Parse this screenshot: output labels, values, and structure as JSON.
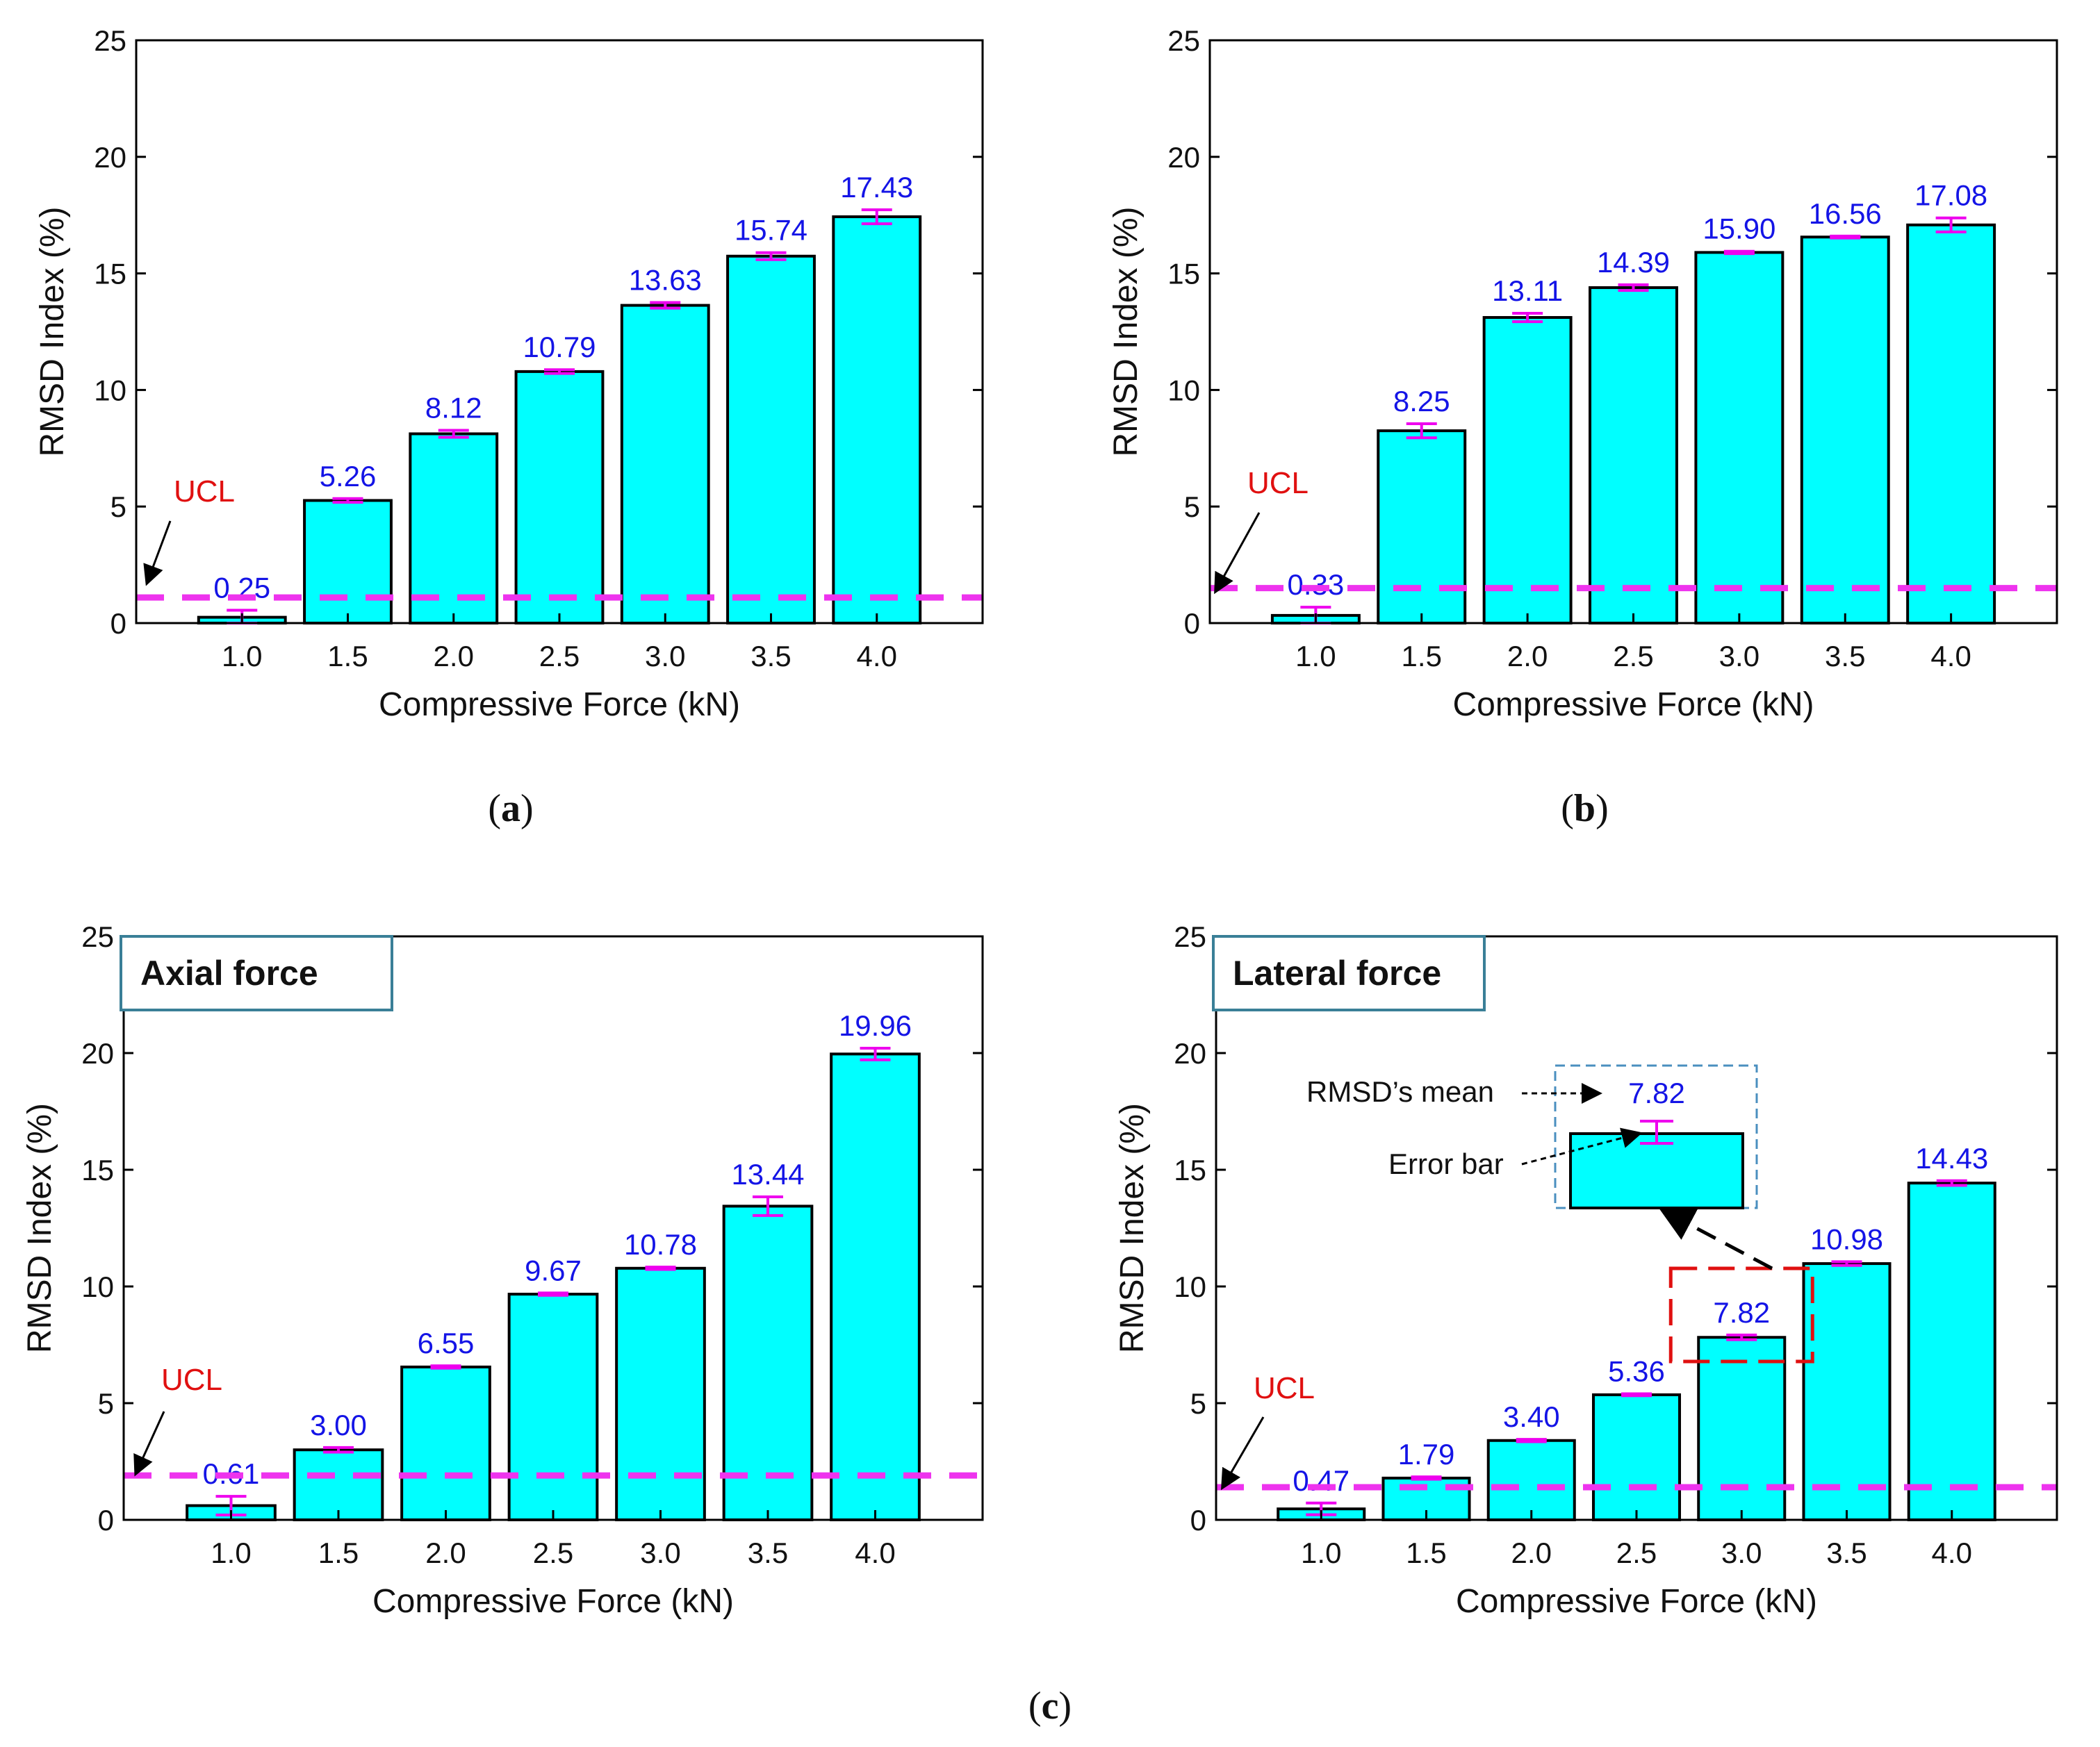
{
  "colors": {
    "bar_fill": "#00ffff",
    "bar_edge": "#000000",
    "error_bar": "#ee00ee",
    "ucl_line": "#ee33ee",
    "value_label": "#1414e6",
    "ucl_label": "#e01010",
    "label_box_border": "#3a7f97",
    "zoom_box": "#e01010",
    "inset_border": "#4a8fbf"
  },
  "chart_data": [
    {
      "id": "a",
      "type": "bar",
      "caption": "a",
      "categories": [
        "1.0",
        "1.5",
        "2.0",
        "2.5",
        "3.0",
        "3.5",
        "4.0"
      ],
      "values": [
        0.25,
        5.26,
        8.12,
        10.79,
        13.63,
        15.74,
        17.43
      ],
      "value_labels": [
        "0.25",
        "5.26",
        "8.12",
        "10.79",
        "13.63",
        "15.74",
        "17.43"
      ],
      "errors": [
        0.3,
        0.08,
        0.15,
        0.08,
        0.12,
        0.15,
        0.3
      ],
      "ucl": 1.1,
      "ucl_label": "UCL",
      "xlabel": "Compressive Force (kN)",
      "ylabel": "RMSD Index (%)",
      "ylim": [
        0,
        25
      ],
      "yticks": [
        "0",
        "5",
        "10",
        "15",
        "20",
        "25"
      ]
    },
    {
      "id": "b",
      "type": "bar",
      "caption": "b",
      "categories": [
        "1.0",
        "1.5",
        "2.0",
        "2.5",
        "3.0",
        "3.5",
        "4.0"
      ],
      "values": [
        0.33,
        8.25,
        13.11,
        14.39,
        15.9,
        16.56,
        17.08
      ],
      "value_labels": [
        "0.33",
        "8.25",
        "13.11",
        "14.39",
        "15.90",
        "16.56",
        "17.08"
      ],
      "errors": [
        0.35,
        0.3,
        0.18,
        0.12,
        0.05,
        0.04,
        0.3
      ],
      "ucl": 1.5,
      "ucl_label": "UCL",
      "xlabel": "Compressive Force (kN)",
      "ylabel": "RMSD Index (%)",
      "ylim": [
        0,
        25
      ],
      "yticks": [
        "0",
        "5",
        "10",
        "15",
        "20",
        "25"
      ]
    },
    {
      "id": "c-axial",
      "type": "bar",
      "box_label": "Axial force",
      "categories": [
        "1.0",
        "1.5",
        "2.0",
        "2.5",
        "3.0",
        "3.5",
        "4.0"
      ],
      "values": [
        0.61,
        3.0,
        6.55,
        9.67,
        10.78,
        13.44,
        19.96
      ],
      "value_labels": [
        "0.61",
        "3.00",
        "6.55",
        "9.67",
        "10.78",
        "13.44",
        "19.96"
      ],
      "errors": [
        0.4,
        0.1,
        0.05,
        0.05,
        0.05,
        0.4,
        0.25
      ],
      "ucl": 1.9,
      "ucl_label": "UCL",
      "xlabel": "Compressive Force (kN)",
      "ylabel": "RMSD Index (%)",
      "ylim": [
        0,
        25
      ],
      "yticks": [
        "0",
        "5",
        "10",
        "15",
        "20",
        "25"
      ]
    },
    {
      "id": "c-lateral",
      "type": "bar",
      "box_label": "Lateral force",
      "categories": [
        "1.0",
        "1.5",
        "2.0",
        "2.5",
        "3.0",
        "3.5",
        "4.0"
      ],
      "values": [
        0.47,
        1.79,
        3.4,
        5.36,
        7.82,
        10.98,
        14.43
      ],
      "value_labels": [
        "0.47",
        "1.79",
        "3.40",
        "5.36",
        "7.82",
        "10.98",
        "14.43"
      ],
      "errors": [
        0.25,
        0.05,
        0.05,
        0.04,
        0.1,
        0.08,
        0.1
      ],
      "ucl": 1.4,
      "ucl_label": "UCL",
      "xlabel": "Compressive Force (kN)",
      "ylabel": "RMSD Index (%)",
      "ylim": [
        0,
        25
      ],
      "yticks": [
        "0",
        "5",
        "10",
        "15",
        "20",
        "25"
      ],
      "inset": {
        "mean_label": "RMSD’s mean",
        "error_label": "Error bar",
        "value_label": "7.82"
      }
    }
  ],
  "figure_caption_c": "c"
}
